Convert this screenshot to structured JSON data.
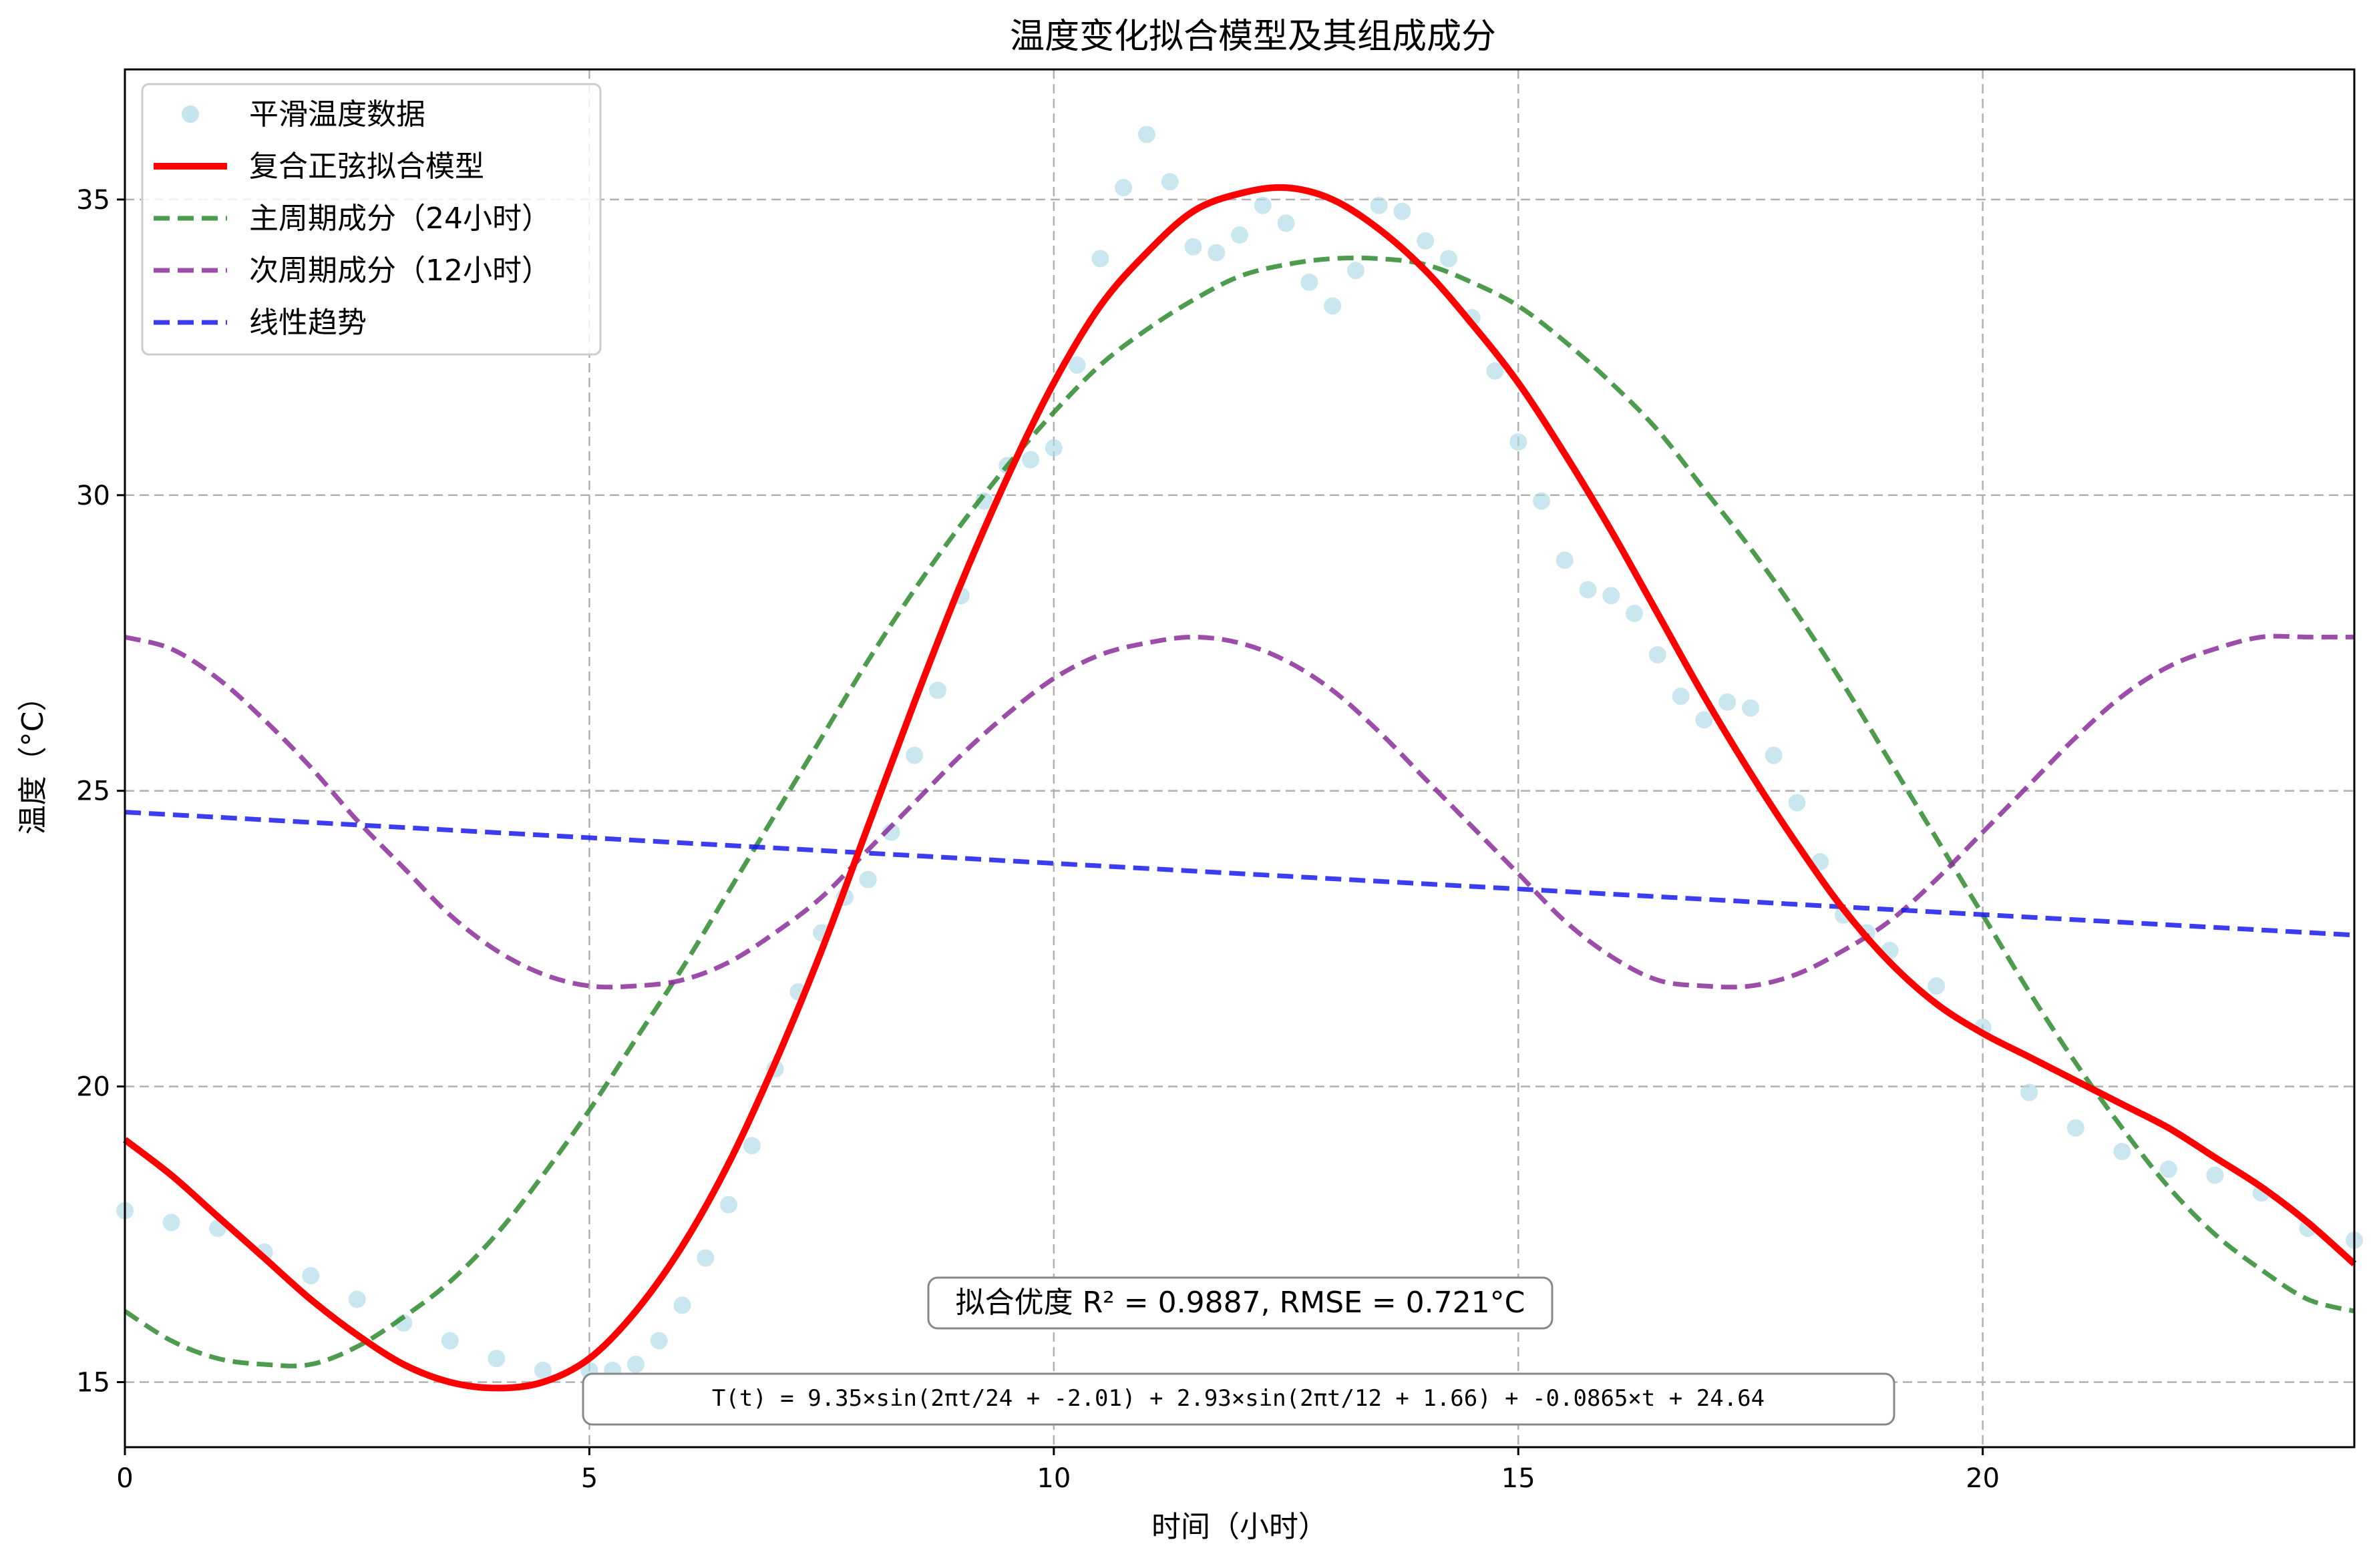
{
  "chart_data": {
    "type": "line",
    "title": "温度变化拟合模型及其组成成分",
    "xlabel": "时间（小时）",
    "ylabel": "温度（°C）",
    "xlim": [
      0,
      24
    ],
    "ylim": [
      13.9,
      37.2
    ],
    "xticks": [
      0,
      5,
      10,
      15,
      20
    ],
    "yticks": [
      15,
      20,
      25,
      30,
      35
    ],
    "grid": true,
    "legend_position": "top-left",
    "colors": {
      "data": "#add8e6",
      "fit": "#ff0000",
      "primary": "#2e8b2e",
      "secondary": "#8b2e9a",
      "trend": "#1a1aee"
    },
    "series": [
      {
        "name": "平滑温度数据",
        "kind": "scatter",
        "x": [
          0.0,
          0.5,
          1.0,
          1.5,
          2.0,
          2.5,
          3.0,
          3.5,
          4.0,
          4.5,
          5.0,
          5.25,
          5.5,
          5.75,
          6.0,
          6.25,
          6.5,
          6.75,
          7.0,
          7.25,
          7.5,
          7.75,
          8.0,
          8.25,
          8.5,
          8.75,
          9.0,
          9.25,
          9.5,
          9.75,
          10.0,
          10.25,
          10.5,
          10.75,
          11.0,
          11.25,
          11.5,
          11.75,
          12.0,
          12.25,
          12.5,
          12.75,
          13.0,
          13.25,
          13.5,
          13.75,
          14.0,
          14.25,
          14.5,
          14.75,
          15.0,
          15.25,
          15.5,
          15.75,
          16.0,
          16.25,
          16.5,
          16.75,
          17.0,
          17.25,
          17.5,
          17.75,
          18.0,
          18.25,
          18.5,
          18.75,
          19.0,
          19.5,
          20.0,
          20.5,
          21.0,
          21.5,
          22.0,
          22.5,
          23.0,
          23.5,
          24.0
        ],
        "y": [
          17.9,
          17.7,
          17.6,
          17.2,
          16.8,
          16.4,
          16.0,
          15.7,
          15.4,
          15.2,
          15.2,
          15.2,
          15.3,
          15.7,
          16.3,
          17.1,
          18.0,
          19.0,
          20.3,
          21.6,
          22.6,
          23.2,
          23.5,
          24.3,
          25.6,
          26.7,
          28.3,
          29.9,
          30.5,
          30.6,
          30.8,
          32.2,
          34.0,
          35.2,
          36.1,
          35.3,
          34.2,
          34.1,
          34.4,
          34.9,
          34.6,
          33.6,
          33.2,
          33.8,
          34.9,
          34.8,
          34.3,
          34.0,
          33.0,
          32.1,
          30.9,
          29.9,
          28.9,
          28.4,
          28.3,
          28.0,
          27.3,
          26.6,
          26.2,
          26.5,
          26.4,
          25.6,
          24.8,
          23.8,
          22.9,
          22.6,
          22.3,
          21.7,
          21.0,
          19.9,
          19.3,
          18.9,
          18.6,
          18.5,
          18.2,
          17.6,
          17.4
        ]
      },
      {
        "name": "复合正弦拟合模型",
        "kind": "line",
        "x": [
          0,
          0.5,
          1,
          1.5,
          2,
          2.5,
          3,
          3.5,
          4,
          4.5,
          5,
          5.5,
          6,
          6.5,
          7,
          7.5,
          8,
          8.5,
          9,
          9.5,
          10,
          10.5,
          11,
          11.5,
          12,
          12.5,
          13,
          13.5,
          14,
          14.5,
          15,
          15.5,
          16,
          16.5,
          17,
          17.5,
          18,
          18.5,
          19,
          19.5,
          20,
          20.5,
          21,
          21.5,
          22,
          22.5,
          23,
          23.5,
          24
        ],
        "y": [
          19.1,
          18.5,
          17.8,
          17.1,
          16.4,
          15.8,
          15.3,
          15.0,
          14.9,
          15.0,
          15.4,
          16.2,
          17.3,
          18.7,
          20.4,
          22.3,
          24.4,
          26.5,
          28.5,
          30.3,
          31.9,
          33.2,
          34.1,
          34.8,
          35.1,
          35.2,
          35.0,
          34.5,
          33.8,
          32.9,
          31.9,
          30.7,
          29.4,
          28.0,
          26.6,
          25.3,
          24.1,
          23.0,
          22.1,
          21.4,
          20.9,
          20.5,
          20.1,
          19.7,
          19.3,
          18.8,
          18.3,
          17.7,
          17.0
        ]
      },
      {
        "name": "主周期成分（24小时）",
        "kind": "dashed",
        "x": [
          0,
          0.5,
          1,
          1.5,
          2,
          2.5,
          3,
          3.5,
          4,
          4.5,
          5,
          5.5,
          6,
          6.5,
          7,
          7.5,
          8,
          8.5,
          9,
          9.5,
          10,
          10.5,
          11,
          11.5,
          12,
          12.5,
          13,
          13.5,
          14,
          14.5,
          15,
          15.5,
          16,
          16.5,
          17,
          17.5,
          18,
          18.5,
          19,
          19.5,
          20,
          20.5,
          21,
          21.5,
          22,
          22.5,
          23,
          23.5,
          24
        ],
        "y": [
          16.2,
          15.7,
          15.4,
          15.3,
          15.3,
          15.6,
          16.1,
          16.7,
          17.5,
          18.5,
          19.6,
          20.8,
          22.0,
          23.3,
          24.6,
          25.9,
          27.2,
          28.4,
          29.5,
          30.5,
          31.4,
          32.2,
          32.8,
          33.3,
          33.7,
          33.9,
          34.0,
          34.0,
          33.9,
          33.6,
          33.2,
          32.6,
          31.9,
          31.1,
          30.1,
          29.1,
          28.0,
          26.8,
          25.5,
          24.2,
          22.9,
          21.6,
          20.4,
          19.3,
          18.3,
          17.5,
          16.9,
          16.4,
          16.2
        ]
      },
      {
        "name": "次周期成分（12小时）",
        "kind": "dashed",
        "x": [
          0,
          0.5,
          1,
          1.5,
          2,
          2.5,
          3,
          3.5,
          4,
          4.5,
          5,
          5.5,
          6,
          6.5,
          7,
          7.5,
          8,
          8.5,
          9,
          9.5,
          10,
          10.5,
          11,
          11.5,
          12,
          12.5,
          13,
          13.5,
          14,
          14.5,
          15,
          15.5,
          16,
          16.5,
          17,
          17.5,
          18,
          18.5,
          19,
          19.5,
          20,
          20.5,
          21,
          21.5,
          22,
          22.5,
          23,
          23.5,
          24
        ],
        "y": [
          27.6,
          27.4,
          26.9,
          26.2,
          25.4,
          24.5,
          23.7,
          22.9,
          22.3,
          21.9,
          21.7,
          21.7,
          21.8,
          22.1,
          22.6,
          23.2,
          24.0,
          24.8,
          25.6,
          26.3,
          26.9,
          27.3,
          27.5,
          27.6,
          27.5,
          27.2,
          26.7,
          26.0,
          25.2,
          24.4,
          23.6,
          22.8,
          22.2,
          21.8,
          21.7,
          21.7,
          21.9,
          22.3,
          22.8,
          23.5,
          24.3,
          25.1,
          25.9,
          26.6,
          27.1,
          27.4,
          27.6,
          27.6,
          27.6
        ]
      },
      {
        "name": "线性趋势",
        "kind": "dashed",
        "x": [
          0,
          24
        ],
        "y": [
          24.64,
          22.56
        ]
      }
    ],
    "annotations": [
      "拟合优度 R² = 0.9887, RMSE = 0.721°C",
      "T(t) = 9.35×sin(2πt/24 + -2.01) + 2.93×sin(2πt/12 + 1.66) + -0.0865×t + 24.64"
    ]
  }
}
